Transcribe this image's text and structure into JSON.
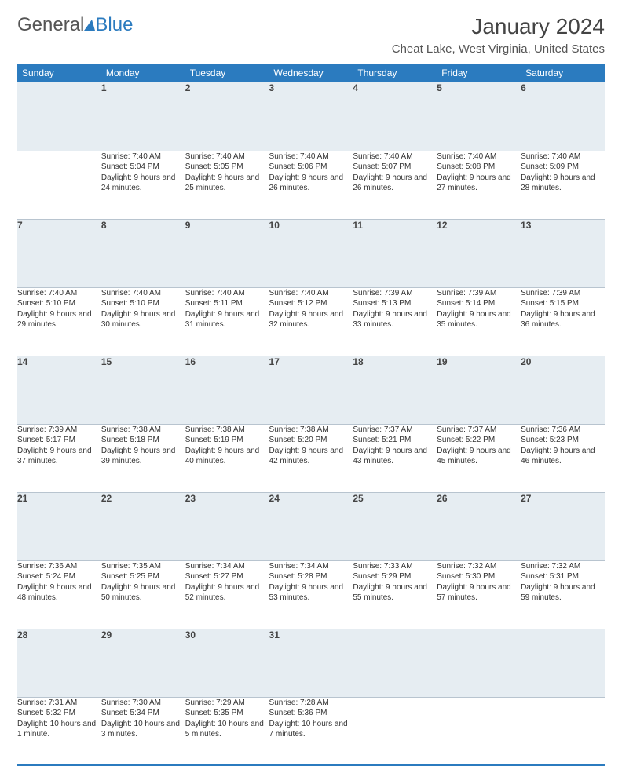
{
  "brand": {
    "part1": "General",
    "part2": "Blue"
  },
  "title": "January 2024",
  "location": "Cheat Lake, West Virginia, United States",
  "colors": {
    "header_bg": "#2b7bbf",
    "header_text": "#ffffff",
    "daynum_bg": "#e6edf2",
    "row_border": "#2b7bbf",
    "cell_border": "#b8c4cf",
    "text": "#333333"
  },
  "weekdays": [
    "Sunday",
    "Monday",
    "Tuesday",
    "Wednesday",
    "Thursday",
    "Friday",
    "Saturday"
  ],
  "weeks": [
    [
      null,
      {
        "n": "1",
        "sunrise": "Sunrise: 7:40 AM",
        "sunset": "Sunset: 5:04 PM",
        "day": "Daylight: 9 hours and 24 minutes."
      },
      {
        "n": "2",
        "sunrise": "Sunrise: 7:40 AM",
        "sunset": "Sunset: 5:05 PM",
        "day": "Daylight: 9 hours and 25 minutes."
      },
      {
        "n": "3",
        "sunrise": "Sunrise: 7:40 AM",
        "sunset": "Sunset: 5:06 PM",
        "day": "Daylight: 9 hours and 26 minutes."
      },
      {
        "n": "4",
        "sunrise": "Sunrise: 7:40 AM",
        "sunset": "Sunset: 5:07 PM",
        "day": "Daylight: 9 hours and 26 minutes."
      },
      {
        "n": "5",
        "sunrise": "Sunrise: 7:40 AM",
        "sunset": "Sunset: 5:08 PM",
        "day": "Daylight: 9 hours and 27 minutes."
      },
      {
        "n": "6",
        "sunrise": "Sunrise: 7:40 AM",
        "sunset": "Sunset: 5:09 PM",
        "day": "Daylight: 9 hours and 28 minutes."
      }
    ],
    [
      {
        "n": "7",
        "sunrise": "Sunrise: 7:40 AM",
        "sunset": "Sunset: 5:10 PM",
        "day": "Daylight: 9 hours and 29 minutes."
      },
      {
        "n": "8",
        "sunrise": "Sunrise: 7:40 AM",
        "sunset": "Sunset: 5:10 PM",
        "day": "Daylight: 9 hours and 30 minutes."
      },
      {
        "n": "9",
        "sunrise": "Sunrise: 7:40 AM",
        "sunset": "Sunset: 5:11 PM",
        "day": "Daylight: 9 hours and 31 minutes."
      },
      {
        "n": "10",
        "sunrise": "Sunrise: 7:40 AM",
        "sunset": "Sunset: 5:12 PM",
        "day": "Daylight: 9 hours and 32 minutes."
      },
      {
        "n": "11",
        "sunrise": "Sunrise: 7:39 AM",
        "sunset": "Sunset: 5:13 PM",
        "day": "Daylight: 9 hours and 33 minutes."
      },
      {
        "n": "12",
        "sunrise": "Sunrise: 7:39 AM",
        "sunset": "Sunset: 5:14 PM",
        "day": "Daylight: 9 hours and 35 minutes."
      },
      {
        "n": "13",
        "sunrise": "Sunrise: 7:39 AM",
        "sunset": "Sunset: 5:15 PM",
        "day": "Daylight: 9 hours and 36 minutes."
      }
    ],
    [
      {
        "n": "14",
        "sunrise": "Sunrise: 7:39 AM",
        "sunset": "Sunset: 5:17 PM",
        "day": "Daylight: 9 hours and 37 minutes."
      },
      {
        "n": "15",
        "sunrise": "Sunrise: 7:38 AM",
        "sunset": "Sunset: 5:18 PM",
        "day": "Daylight: 9 hours and 39 minutes."
      },
      {
        "n": "16",
        "sunrise": "Sunrise: 7:38 AM",
        "sunset": "Sunset: 5:19 PM",
        "day": "Daylight: 9 hours and 40 minutes."
      },
      {
        "n": "17",
        "sunrise": "Sunrise: 7:38 AM",
        "sunset": "Sunset: 5:20 PM",
        "day": "Daylight: 9 hours and 42 minutes."
      },
      {
        "n": "18",
        "sunrise": "Sunrise: 7:37 AM",
        "sunset": "Sunset: 5:21 PM",
        "day": "Daylight: 9 hours and 43 minutes."
      },
      {
        "n": "19",
        "sunrise": "Sunrise: 7:37 AM",
        "sunset": "Sunset: 5:22 PM",
        "day": "Daylight: 9 hours and 45 minutes."
      },
      {
        "n": "20",
        "sunrise": "Sunrise: 7:36 AM",
        "sunset": "Sunset: 5:23 PM",
        "day": "Daylight: 9 hours and 46 minutes."
      }
    ],
    [
      {
        "n": "21",
        "sunrise": "Sunrise: 7:36 AM",
        "sunset": "Sunset: 5:24 PM",
        "day": "Daylight: 9 hours and 48 minutes."
      },
      {
        "n": "22",
        "sunrise": "Sunrise: 7:35 AM",
        "sunset": "Sunset: 5:25 PM",
        "day": "Daylight: 9 hours and 50 minutes."
      },
      {
        "n": "23",
        "sunrise": "Sunrise: 7:34 AM",
        "sunset": "Sunset: 5:27 PM",
        "day": "Daylight: 9 hours and 52 minutes."
      },
      {
        "n": "24",
        "sunrise": "Sunrise: 7:34 AM",
        "sunset": "Sunset: 5:28 PM",
        "day": "Daylight: 9 hours and 53 minutes."
      },
      {
        "n": "25",
        "sunrise": "Sunrise: 7:33 AM",
        "sunset": "Sunset: 5:29 PM",
        "day": "Daylight: 9 hours and 55 minutes."
      },
      {
        "n": "26",
        "sunrise": "Sunrise: 7:32 AM",
        "sunset": "Sunset: 5:30 PM",
        "day": "Daylight: 9 hours and 57 minutes."
      },
      {
        "n": "27",
        "sunrise": "Sunrise: 7:32 AM",
        "sunset": "Sunset: 5:31 PM",
        "day": "Daylight: 9 hours and 59 minutes."
      }
    ],
    [
      {
        "n": "28",
        "sunrise": "Sunrise: 7:31 AM",
        "sunset": "Sunset: 5:32 PM",
        "day": "Daylight: 10 hours and 1 minute."
      },
      {
        "n": "29",
        "sunrise": "Sunrise: 7:30 AM",
        "sunset": "Sunset: 5:34 PM",
        "day": "Daylight: 10 hours and 3 minutes."
      },
      {
        "n": "30",
        "sunrise": "Sunrise: 7:29 AM",
        "sunset": "Sunset: 5:35 PM",
        "day": "Daylight: 10 hours and 5 minutes."
      },
      {
        "n": "31",
        "sunrise": "Sunrise: 7:28 AM",
        "sunset": "Sunset: 5:36 PM",
        "day": "Daylight: 10 hours and 7 minutes."
      },
      null,
      null,
      null
    ]
  ]
}
